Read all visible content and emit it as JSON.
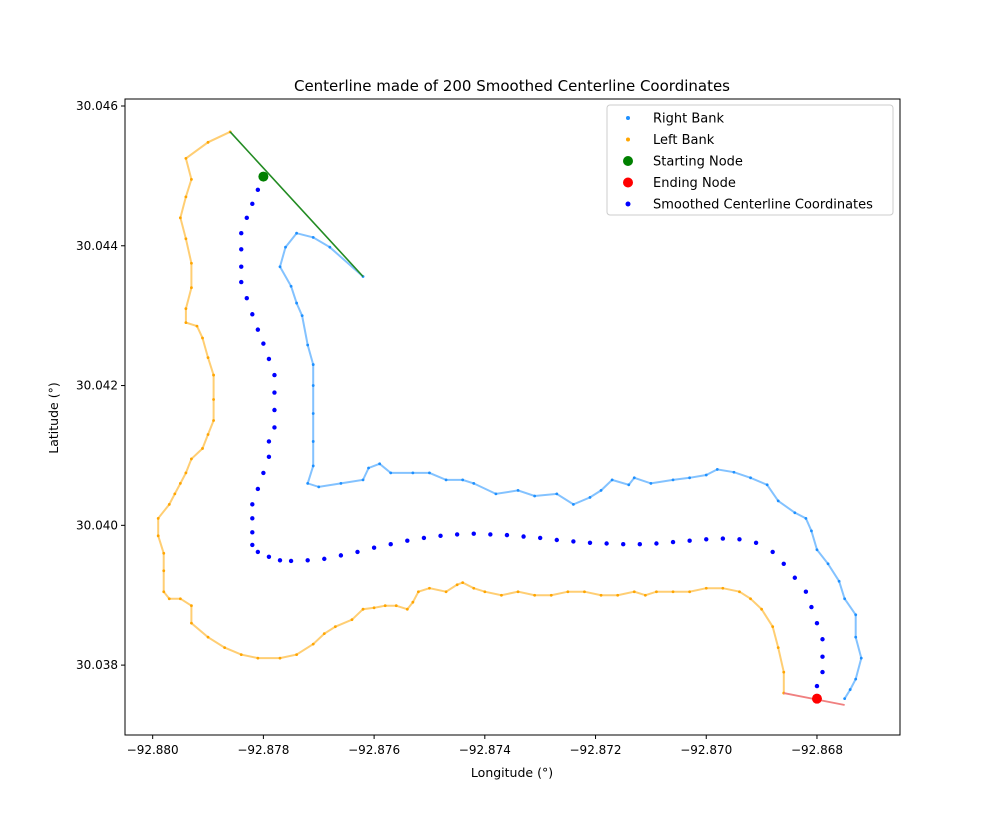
{
  "chart_data": {
    "type": "scatter",
    "title": "Centerline made of 200 Smoothed Centerline Coordinates",
    "xlabel": "Longitude (°)",
    "ylabel": "Latitude (°)",
    "xlim": [
      -92.8805,
      -92.8665
    ],
    "ylim": [
      30.037,
      30.0461
    ],
    "xticks": [
      -92.88,
      -92.878,
      -92.876,
      -92.874,
      -92.872,
      -92.87,
      -92.868
    ],
    "xtick_labels": [
      "−92.880",
      "−92.878",
      "−92.876",
      "−92.874",
      "−92.872",
      "−92.870",
      "−92.868"
    ],
    "yticks": [
      30.038,
      30.04,
      30.042,
      30.044,
      30.046
    ],
    "ytick_labels": [
      "30.038",
      "30.040",
      "30.042",
      "30.044",
      "30.046"
    ],
    "grid": false,
    "legend_position": "upper-right",
    "legend": [
      {
        "label": "Right Bank",
        "color": "#1e90ff",
        "marker": "small-dot"
      },
      {
        "label": "Left Bank",
        "color": "#ffa500",
        "marker": "small-dot"
      },
      {
        "label": "Starting Node",
        "color": "#008000",
        "marker": "large-dot"
      },
      {
        "label": "Ending Node",
        "color": "#ff0000",
        "marker": "large-dot"
      },
      {
        "label": "Smoothed Centerline Coordinates",
        "color": "#0000ff",
        "marker": "medium-dot"
      }
    ],
    "right_bank": [
      [
        -92.8762,
        30.04356
      ],
      [
        -92.8768,
        30.04398
      ],
      [
        -92.8771,
        30.04412
      ],
      [
        -92.8774,
        30.04418
      ],
      [
        -92.8776,
        30.04398
      ],
      [
        -92.8777,
        30.0437
      ],
      [
        -92.8775,
        30.04342
      ],
      [
        -92.8774,
        30.04318
      ],
      [
        -92.8773,
        30.043
      ],
      [
        -92.8772,
        30.04258
      ],
      [
        -92.8771,
        30.0423
      ],
      [
        -92.8771,
        30.042
      ],
      [
        -92.8771,
        30.0416
      ],
      [
        -92.8771,
        30.0412
      ],
      [
        -92.8771,
        30.04085
      ],
      [
        -92.8772,
        30.0406
      ],
      [
        -92.877,
        30.04055
      ],
      [
        -92.8766,
        30.0406
      ],
      [
        -92.8762,
        30.04065
      ],
      [
        -92.8761,
        30.04082
      ],
      [
        -92.8759,
        30.04088
      ],
      [
        -92.8757,
        30.04075
      ],
      [
        -92.8753,
        30.04075
      ],
      [
        -92.875,
        30.04075
      ],
      [
        -92.8747,
        30.04065
      ],
      [
        -92.8744,
        30.04065
      ],
      [
        -92.8742,
        30.0406
      ],
      [
        -92.8738,
        30.04045
      ],
      [
        -92.8734,
        30.0405
      ],
      [
        -92.8731,
        30.04042
      ],
      [
        -92.8727,
        30.04045
      ],
      [
        -92.8724,
        30.0403
      ],
      [
        -92.8721,
        30.0404
      ],
      [
        -92.8719,
        30.0405
      ],
      [
        -92.8717,
        30.04065
      ],
      [
        -92.8714,
        30.04058
      ],
      [
        -92.8713,
        30.04068
      ],
      [
        -92.871,
        30.0406
      ],
      [
        -92.8706,
        30.04065
      ],
      [
        -92.8703,
        30.04068
      ],
      [
        -92.87,
        30.04072
      ],
      [
        -92.8698,
        30.0408
      ],
      [
        -92.8695,
        30.04076
      ],
      [
        -92.8692,
        30.04068
      ],
      [
        -92.8689,
        30.04058
      ],
      [
        -92.8687,
        30.04035
      ],
      [
        -92.8684,
        30.04018
      ],
      [
        -92.8682,
        30.0401
      ],
      [
        -92.8681,
        30.03992
      ],
      [
        -92.868,
        30.03965
      ],
      [
        -92.8678,
        30.03945
      ],
      [
        -92.8676,
        30.0392
      ],
      [
        -92.8675,
        30.03895
      ],
      [
        -92.8673,
        30.03872
      ],
      [
        -92.8673,
        30.0384
      ],
      [
        -92.8672,
        30.0381
      ],
      [
        -92.8673,
        30.0378
      ],
      [
        -92.8674,
        30.03765
      ],
      [
        -92.8675,
        30.03752
      ]
    ],
    "left_bank": [
      [
        -92.8786,
        30.04563
      ],
      [
        -92.879,
        30.04548
      ],
      [
        -92.8794,
        30.04525
      ],
      [
        -92.8793,
        30.04495
      ],
      [
        -92.8794,
        30.0447
      ],
      [
        -92.8795,
        30.0444
      ],
      [
        -92.8794,
        30.0441
      ],
      [
        -92.8793,
        30.04375
      ],
      [
        -92.8793,
        30.0434
      ],
      [
        -92.8794,
        30.0431
      ],
      [
        -92.8794,
        30.0429
      ],
      [
        -92.8792,
        30.04285
      ],
      [
        -92.8791,
        30.04268
      ],
      [
        -92.879,
        30.0424
      ],
      [
        -92.8789,
        30.04215
      ],
      [
        -92.8789,
        30.0418
      ],
      [
        -92.8789,
        30.0415
      ],
      [
        -92.879,
        30.0413
      ],
      [
        -92.8791,
        30.0411
      ],
      [
        -92.8793,
        30.04095
      ],
      [
        -92.8794,
        30.04075
      ],
      [
        -92.8795,
        30.0406
      ],
      [
        -92.8796,
        30.04045
      ],
      [
        -92.8797,
        30.0403
      ],
      [
        -92.8799,
        30.0401
      ],
      [
        -92.8799,
        30.03985
      ],
      [
        -92.8798,
        30.0396
      ],
      [
        -92.8798,
        30.03935
      ],
      [
        -92.8798,
        30.03905
      ],
      [
        -92.8797,
        30.03895
      ],
      [
        -92.8795,
        30.03895
      ],
      [
        -92.8793,
        30.03885
      ],
      [
        -92.8793,
        30.0386
      ],
      [
        -92.879,
        30.0384
      ],
      [
        -92.8787,
        30.03825
      ],
      [
        -92.8784,
        30.03815
      ],
      [
        -92.8781,
        30.0381
      ],
      [
        -92.8777,
        30.0381
      ],
      [
        -92.8774,
        30.03815
      ],
      [
        -92.8771,
        30.0383
      ],
      [
        -92.8769,
        30.03845
      ],
      [
        -92.8767,
        30.03855
      ],
      [
        -92.8764,
        30.03865
      ],
      [
        -92.8762,
        30.0388
      ],
      [
        -92.876,
        30.03882
      ],
      [
        -92.8758,
        30.03885
      ],
      [
        -92.8756,
        30.03885
      ],
      [
        -92.8754,
        30.0388
      ],
      [
        -92.8753,
        30.0389
      ],
      [
        -92.8752,
        30.03905
      ],
      [
        -92.875,
        30.0391
      ],
      [
        -92.8747,
        30.03905
      ],
      [
        -92.8745,
        30.03915
      ],
      [
        -92.8744,
        30.03918
      ],
      [
        -92.8742,
        30.0391
      ],
      [
        -92.874,
        30.03905
      ],
      [
        -92.8737,
        30.039
      ],
      [
        -92.8734,
        30.03905
      ],
      [
        -92.8731,
        30.039
      ],
      [
        -92.8728,
        30.039
      ],
      [
        -92.8725,
        30.03905
      ],
      [
        -92.8722,
        30.03905
      ],
      [
        -92.8719,
        30.039
      ],
      [
        -92.8716,
        30.039
      ],
      [
        -92.8713,
        30.03905
      ],
      [
        -92.8711,
        30.039
      ],
      [
        -92.8709,
        30.03905
      ],
      [
        -92.8706,
        30.03905
      ],
      [
        -92.8703,
        30.03905
      ],
      [
        -92.87,
        30.0391
      ],
      [
        -92.8697,
        30.0391
      ],
      [
        -92.8694,
        30.03905
      ],
      [
        -92.8692,
        30.03895
      ],
      [
        -92.869,
        30.0388
      ],
      [
        -92.8688,
        30.03855
      ],
      [
        -92.8687,
        30.03825
      ],
      [
        -92.8686,
        30.0379
      ],
      [
        -92.8686,
        30.0376
      ]
    ],
    "centerline": [
      [
        -92.878,
        30.04499
      ],
      [
        -92.8781,
        30.0448
      ],
      [
        -92.8782,
        30.0446
      ],
      [
        -92.8783,
        30.0444
      ],
      [
        -92.8784,
        30.04418
      ],
      [
        -92.8784,
        30.04395
      ],
      [
        -92.8784,
        30.0437
      ],
      [
        -92.8784,
        30.04348
      ],
      [
        -92.8783,
        30.04325
      ],
      [
        -92.8782,
        30.04302
      ],
      [
        -92.8781,
        30.0428
      ],
      [
        -92.878,
        30.0426
      ],
      [
        -92.8779,
        30.04238
      ],
      [
        -92.8778,
        30.04215
      ],
      [
        -92.8778,
        30.0419
      ],
      [
        -92.8778,
        30.04165
      ],
      [
        -92.8778,
        30.0414
      ],
      [
        -92.8779,
        30.0412
      ],
      [
        -92.8779,
        30.04098
      ],
      [
        -92.878,
        30.04075
      ],
      [
        -92.8781,
        30.04052
      ],
      [
        -92.8782,
        30.0403
      ],
      [
        -92.8782,
        30.0401
      ],
      [
        -92.8782,
        30.0399
      ],
      [
        -92.8782,
        30.03972
      ],
      [
        -92.8781,
        30.03962
      ],
      [
        -92.8779,
        30.03955
      ],
      [
        -92.8777,
        30.0395
      ],
      [
        -92.8775,
        30.03949
      ],
      [
        -92.8772,
        30.0395
      ],
      [
        -92.8769,
        30.03952
      ],
      [
        -92.8766,
        30.03957
      ],
      [
        -92.8763,
        30.03962
      ],
      [
        -92.876,
        30.03968
      ],
      [
        -92.8757,
        30.03973
      ],
      [
        -92.8754,
        30.03978
      ],
      [
        -92.8751,
        30.03982
      ],
      [
        -92.8748,
        30.03985
      ],
      [
        -92.8745,
        30.03987
      ],
      [
        -92.8742,
        30.03988
      ],
      [
        -92.8739,
        30.03987
      ],
      [
        -92.8736,
        30.03986
      ],
      [
        -92.8733,
        30.03984
      ],
      [
        -92.873,
        30.03982
      ],
      [
        -92.8727,
        30.03979
      ],
      [
        -92.8724,
        30.03977
      ],
      [
        -92.8721,
        30.03975
      ],
      [
        -92.8718,
        30.03974
      ],
      [
        -92.8715,
        30.03973
      ],
      [
        -92.8712,
        30.03973
      ],
      [
        -92.8709,
        30.03974
      ],
      [
        -92.8706,
        30.03976
      ],
      [
        -92.8703,
        30.03978
      ],
      [
        -92.87,
        30.0398
      ],
      [
        -92.8697,
        30.03981
      ],
      [
        -92.8694,
        30.0398
      ],
      [
        -92.8691,
        30.03975
      ],
      [
        -92.8688,
        30.03962
      ],
      [
        -92.8686,
        30.03945
      ],
      [
        -92.8684,
        30.03925
      ],
      [
        -92.8682,
        30.03905
      ],
      [
        -92.8681,
        30.03883
      ],
      [
        -92.868,
        30.0386
      ],
      [
        -92.8679,
        30.03837
      ],
      [
        -92.8679,
        30.03812
      ],
      [
        -92.8679,
        30.0379
      ],
      [
        -92.868,
        30.0377
      ],
      [
        -92.868,
        30.03752
      ]
    ],
    "start_node": [
      -92.878,
      30.04499
    ],
    "end_node": [
      -92.868,
      30.03752
    ],
    "start_line": [
      [
        -92.8786,
        30.04563
      ],
      [
        -92.8762,
        30.04356
      ]
    ],
    "end_line": [
      [
        -92.8686,
        30.0376
      ],
      [
        -92.8675,
        30.03743
      ]
    ]
  }
}
